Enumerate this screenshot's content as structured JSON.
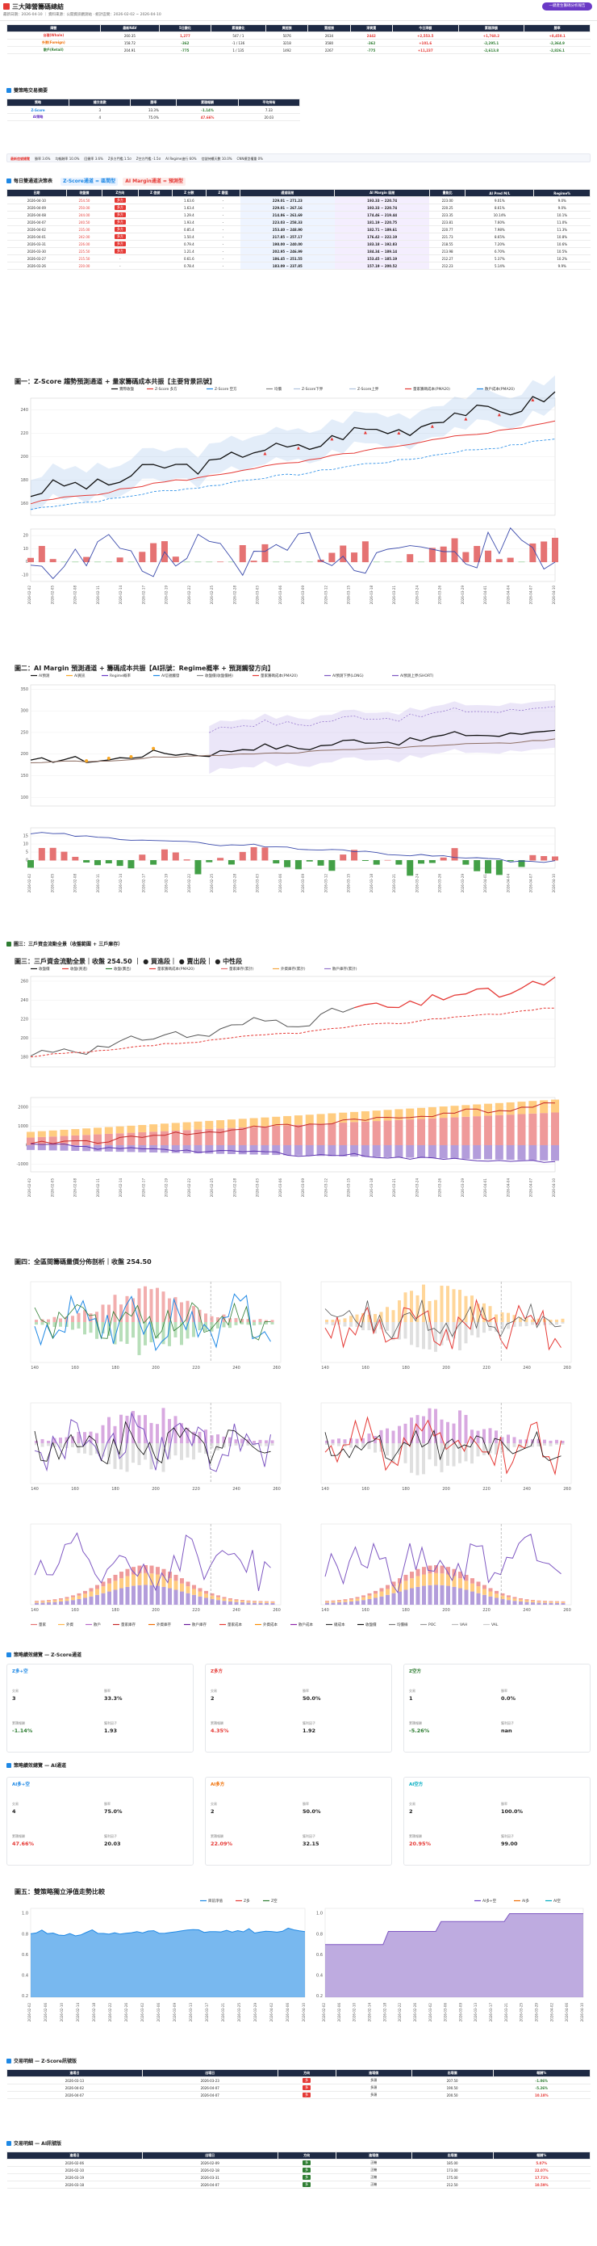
{
  "header": {
    "title": "三大陣營籌碼總結",
    "subtitle": "最新日期：2026-04-10 ｜ 資料來源：公開資訊觀測站 · 統計區間：2026-02-02 ~ 2026-04-10",
    "button": "一鍵產生籌碼分析報告"
  },
  "summary": {
    "headers": [
      "陣營",
      "最新NAV",
      "5日變化",
      "累積變化",
      "買超張",
      "賣超張",
      "淨買賣",
      "今日淨額",
      "累積淨額",
      "勝率"
    ],
    "rows": [
      {
        "name": "台積(Whale)",
        "c1": "260.35",
        "c2": "1,277",
        "c3": "547 / 1",
        "c4": "5076",
        "c5": "2634",
        "c6": "2442",
        "c7": "+2,553.5",
        "c8": "+1,760.2",
        "c9": "+8,450.1",
        "c10": "72.0%"
      },
      {
        "name": "外資(Foreign)",
        "c1": "158.72",
        "c2": "-362",
        "c3": "-1 / 136",
        "c4": "3218",
        "c5": "3580",
        "c6": "-362",
        "c7": "+101.6",
        "c8": "-2,295.1",
        "c9": "-2,364.9",
        "c10": "58.3%"
      },
      {
        "name": "散戶(Retail)",
        "c1": "204.91",
        "c2": "-775",
        "c3": "1 / 135",
        "c4": "1492",
        "c5": "2267",
        "c6": "-775",
        "c7": "+11,237",
        "c8": "-2,613.8",
        "c9": "-2,826.1",
        "c10": "44.1%"
      }
    ]
  },
  "signals": {
    "title": "雙策略交易摘要",
    "headers": [
      "策略",
      "總交易數",
      "勝率",
      "累積報酬",
      "平均持有"
    ],
    "rows": [
      {
        "name": "Z-Score",
        "a": "3",
        "b": "33.3%",
        "c": "-1.14%",
        "d": "7.33"
      },
      {
        "name": "AI策略",
        "a": "4",
        "b": "75.0%",
        "c": "47.66%",
        "d": "20.03"
      }
    ]
  },
  "infobar": {
    "lead": "最新信號總覽",
    "items": [
      "勝率 3.6%",
      "均報酬率 10.0%",
      "回撤率 3.6%",
      "Z多方門檻 1.5σ",
      "Z空方門檻 -1.5σ",
      "AI Regime進行 60%",
      "信號持續天數 10.0%",
      "CNN模型權重 0%"
    ]
  },
  "daily": {
    "title": "每日雙通道決策表",
    "chip1": "Z-Score通道 = 區間型",
    "chip2": "AI Margin通道 = 預測型",
    "headers": [
      "日期",
      "收盤價",
      "Z方向",
      "Z 信號",
      "Z 分數",
      "Z 閾值",
      "通道區間",
      "AI Margin 區間",
      "量能比",
      "AI Pred M/L",
      "Regime%"
    ],
    "rows": [
      {
        "d": "2026-04-10",
        "p": "254.50",
        "z": "多方",
        "zs": "",
        "zv": "1.63.6",
        "zt": "-",
        "band": "229.01 ~ 271.23",
        "ai": "193.33 ~ 220.74",
        "v": "223.00",
        "pm": "9.01%",
        "r": "9.0%"
      },
      {
        "d": "2026-04-09",
        "p": "250.00",
        "z": "多方",
        "zs": "",
        "zv": "1.63.4",
        "zt": "-",
        "band": "229.01 ~ 267.16",
        "ai": "193.33 ~ 220.74",
        "v": "220.25",
        "pm": "8.61%",
        "r": "9.0%"
      },
      {
        "d": "2026-04-08",
        "p": "244.00",
        "z": "多方",
        "zs": "",
        "zv": "1.29.4",
        "zt": "-",
        "band": "214.86 ~ 261.69",
        "ai": "174.46 ~ 219.44",
        "v": "223.35",
        "pm": "10.14%",
        "r": "10.1%"
      },
      {
        "d": "2026-04-07",
        "p": "240.50",
        "z": "多方",
        "zs": "",
        "zv": "1.93.4",
        "zt": "-",
        "band": "223.03 ~ 258.33",
        "ai": "181.19 ~ 220.75",
        "v": "223.81",
        "pm": "7.60%",
        "r": "11.0%"
      },
      {
        "d": "2026-04-02",
        "p": "235.00",
        "z": "多方",
        "zs": "",
        "zv": "0.85.4",
        "zt": "-",
        "band": "253.40 ~ 248.90",
        "ai": "182.71 ~ 189.61",
        "v": "220.77",
        "pm": "7.98%",
        "r": "11.3%"
      },
      {
        "d": "2026-04-01",
        "p": "242.00",
        "z": "多方",
        "zs": "",
        "zv": "1.50.4",
        "zt": "-",
        "band": "217.85 ~ 257.17",
        "ai": "176.42 ~ 222.19",
        "v": "221.73",
        "pm": "8.65%",
        "r": "10.8%"
      },
      {
        "d": "2026-03-31",
        "p": "226.00",
        "z": "多方",
        "zs": "",
        "zv": "0.79.4",
        "zt": "-",
        "band": "198.00 ~ 240.00",
        "ai": "183.18 ~ 192.83",
        "v": "218.55",
        "pm": "7.20%",
        "r": "10.6%"
      },
      {
        "d": "2026-03-30",
        "p": "225.50",
        "z": "多方",
        "zs": "",
        "zv": "1.21.4",
        "zt": "-",
        "band": "202.95 ~ 246.99",
        "ai": "184.34 ~ 189.14",
        "v": "213.98",
        "pm": "6.70%",
        "r": "10.5%"
      },
      {
        "d": "2026-03-27",
        "p": "215.50",
        "z": "-",
        "zs": "",
        "zv": "0.61.6",
        "zt": "-",
        "band": "186.45 ~ 251.55",
        "ai": "153.45 ~ 185.19",
        "v": "212.27",
        "pm": "5.37%",
        "r": "10.2%"
      },
      {
        "d": "2026-03-26",
        "p": "220.00",
        "z": "-",
        "zs": "",
        "zv": "0.78.4",
        "zt": "-",
        "band": "183.09 ~ 237.85",
        "ai": "157.19 ~ 200.52",
        "v": "212.23",
        "pm": "5.14%",
        "r": "9.9%"
      }
    ]
  },
  "chart1": {
    "title": "圖一：Z-Score 趨勢預測通道 + 量家籌碼成本共振【主要背景訊號】",
    "legend": [
      "實際收盤",
      "Z-Score 多方",
      "Z-Score 空方",
      "均價",
      "Z-Score下界",
      "Z-Score上界",
      "量家籌碼成本(PMA20)",
      "散戶成本(PMA20)"
    ]
  },
  "chart2": {
    "title": "圖二：AI Margin 預測通道 + 籌碼成本共振【AI訊號：Regime概率 + 預測觸發方向】",
    "legend": [
      "AI預測",
      "AI買訊",
      "Regime概率",
      "AI信號觸發",
      "收盤價(收盤價格)",
      "量家籌碼成本(PMA20)",
      "AI預測下界(LONG)",
      "AI預測上界(SHORT)"
    ],
    "yl2": "AI預測%",
    "yr2": "Regime概率"
  },
  "chart3": {
    "sectitle": "圖三：三戶資金流動全景（收盤範圍 + 三戶庫存）",
    "title": "圖三：三戶資金流動全景｜收盤 254.50 ｜ ● 買進段｜ ● 賣出段｜ ● 中性段",
    "legend": [
      "收盤價",
      "收盤(買進)",
      "收盤(賣出)",
      "量家籌碼成本(PMA20)",
      "量家庫存(累計)",
      "外資庫存(累計)",
      "散戶庫存(累計)"
    ],
    "yl": "價格",
    "yl2": "庫存(萬張)",
    "yr2": "庫存(萬張)"
  },
  "chart4": {
    "title": "圖四：全區間籌碼量價分佈剖析｜收盤 254.50",
    "panels": [
      "量家 量價分佈",
      "外資 量價分佈",
      "散戶 量價分佈",
      "大戶(量+戶) 量價分佈",
      "買方三戶 堆疊量能",
      "賣方三戶 堆疊量能"
    ],
    "legend": [
      "量家",
      "外資",
      "散戶",
      "量家庫存",
      "外資庫存",
      "散戶庫存",
      "量家成本",
      "外資成本",
      "散戶成本",
      "總成本",
      "收盤價",
      "均價線",
      "POC",
      "VAH",
      "VAL"
    ]
  },
  "zperf": {
    "title": "策略績效總覽 — Z-Score通道",
    "cards": [
      {
        "name": "Z多+空",
        "trades": "3",
        "win": "33.3%",
        "ret": "-1.14%",
        "pf": "1.93",
        "color": "#1e88e5"
      },
      {
        "name": "Z多方",
        "trades": "2",
        "win": "50.0%",
        "ret": "4.35%",
        "pf": "1.92",
        "color": "#e53935"
      },
      {
        "name": "Z空方",
        "trades": "1",
        "win": "0.0%",
        "ret": "-5.26%",
        "pf": "nan",
        "color": "#2e7d32"
      }
    ],
    "labels": [
      "交易",
      "勝率",
      "累積報酬",
      "獲利因子"
    ]
  },
  "aperf": {
    "title": "策略績效總覽 — AI通道",
    "cards": [
      {
        "name": "AI多+空",
        "trades": "4",
        "win": "75.0%",
        "ret": "47.66%",
        "pf": "20.03",
        "color": "#1e88e5"
      },
      {
        "name": "AI多方",
        "trades": "2",
        "win": "50.0%",
        "ret": "22.09%",
        "pf": "32.15",
        "color": "#ef6c00"
      },
      {
        "name": "AI空方",
        "trades": "2",
        "win": "100.0%",
        "ret": "20.95%",
        "pf": "99.00",
        "color": "#00acc1"
      }
    ]
  },
  "chart5": {
    "title": "圖五：雙策略獨立淨值走勢比較",
    "p1": "Z-Score策略淨值",
    "p2": "AI策略淨值",
    "legend": [
      "目前淨值",
      "Z多",
      "Z空",
      "AI多+空",
      "AI多",
      "AI空"
    ]
  },
  "ztrades": {
    "title": "交易明細 — Z-Score訊號版",
    "headers": [
      "進場日",
      "出場日",
      "方向",
      "進場價",
      "出場價",
      "報酬%"
    ],
    "rows": [
      {
        "a": "2026-03-13",
        "b": "2026-03-23",
        "dir": "多",
        "x": "多頭",
        "p": "207.50",
        "r": "-1.06%"
      },
      {
        "a": "2026-04-02",
        "b": "2026-04-07",
        "dir": "多",
        "x": "多頭",
        "p": "190.50",
        "r": "-5.26%"
      },
      {
        "a": "2026-04-07",
        "b": "2026-04-07",
        "dir": "多",
        "x": "多頭",
        "p": "200.50",
        "r": "10.18%"
      }
    ]
  },
  "atrades": {
    "title": "交易明細 — AI訊號版",
    "headers": [
      "進場日",
      "出場日",
      "方向",
      "進場價",
      "出場價",
      "報酬%"
    ],
    "rows": [
      {
        "a": "2026-02-06",
        "b": "2026-02-09",
        "dir": "多",
        "x": "正機",
        "p": "185.00",
        "r": "5.07%"
      },
      {
        "a": "2026-02-10",
        "b": "2026-02-18",
        "dir": "多",
        "x": "正機",
        "p": "173.00",
        "r": "22.07%"
      },
      {
        "a": "2026-03-19",
        "b": "2026-03-31",
        "dir": "多",
        "x": "正機",
        "p": "175.00",
        "r": "17.71%"
      },
      {
        "a": "2026-03-18",
        "b": "2026-04-07",
        "dir": "多",
        "x": "正機",
        "p": "212.50",
        "r": "10.59%"
      }
    ]
  }
}
